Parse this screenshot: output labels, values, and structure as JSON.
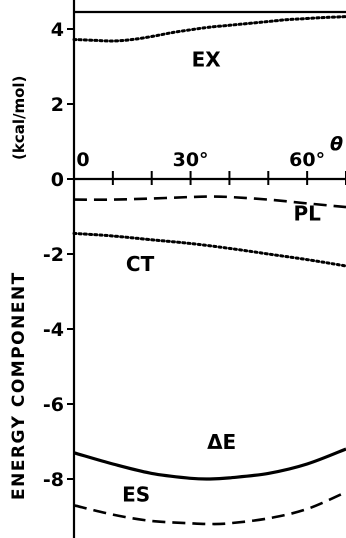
{
  "chart_data": {
    "type": "line",
    "title": "",
    "ylabel": "ENERGY COMPONENT",
    "yunit": "(kcal/mol)",
    "xlabel": "θ",
    "xlim": [
      0,
      70
    ],
    "ylim": [
      -9.3,
      4.5
    ],
    "xticks": [
      0,
      30,
      60
    ],
    "xtick_labels": [
      "0",
      "30°",
      "60°"
    ],
    "yticks": [
      4,
      2,
      0,
      -2,
      -4,
      -6,
      -8
    ],
    "ytick_labels": [
      "4",
      "2",
      "0",
      "-2",
      "-4",
      "-6",
      "-8"
    ],
    "grid": false,
    "legend": "none",
    "series": [
      {
        "name": "EX",
        "style": "dotted",
        "x": [
          0,
          5,
          10,
          15,
          20,
          25,
          30,
          35,
          40,
          45,
          50,
          55,
          60,
          65,
          70
        ],
        "y": [
          3.72,
          3.7,
          3.68,
          3.72,
          3.8,
          3.9,
          3.98,
          4.05,
          4.1,
          4.15,
          4.2,
          4.25,
          4.28,
          4.31,
          4.33
        ]
      },
      {
        "name": "PL",
        "style": "dashed",
        "x": [
          0,
          10,
          20,
          30,
          35,
          40,
          50,
          60,
          70
        ],
        "y": [
          -0.55,
          -0.55,
          -0.52,
          -0.48,
          -0.47,
          -0.48,
          -0.55,
          -0.65,
          -0.75
        ]
      },
      {
        "name": "CT",
        "style": "dotted",
        "x": [
          0,
          10,
          20,
          30,
          40,
          50,
          60,
          70
        ],
        "y": [
          -1.45,
          -1.52,
          -1.62,
          -1.72,
          -1.85,
          -2.0,
          -2.15,
          -2.32
        ]
      },
      {
        "name": "ΔE",
        "style": "solid",
        "x": [
          0,
          10,
          20,
          30,
          35,
          40,
          50,
          60,
          70
        ],
        "y": [
          -7.3,
          -7.6,
          -7.85,
          -7.98,
          -8.0,
          -7.97,
          -7.85,
          -7.6,
          -7.2
        ]
      },
      {
        "name": "ES",
        "style": "dashed",
        "x": [
          0,
          10,
          20,
          30,
          35,
          40,
          50,
          60,
          70
        ],
        "y": [
          -8.7,
          -8.95,
          -9.12,
          -9.18,
          -9.2,
          -9.18,
          -9.05,
          -8.8,
          -8.35
        ]
      }
    ],
    "annotations": [
      {
        "text": "EX",
        "x": 34,
        "y": 3.0
      },
      {
        "text": "PL",
        "x": 60,
        "y": -1.1
      },
      {
        "text": "CT",
        "x": 17,
        "y": -2.45
      },
      {
        "text": "ΔE",
        "x": 38,
        "y": -7.2
      },
      {
        "text": "ES",
        "x": 16,
        "y": -8.6
      }
    ]
  }
}
